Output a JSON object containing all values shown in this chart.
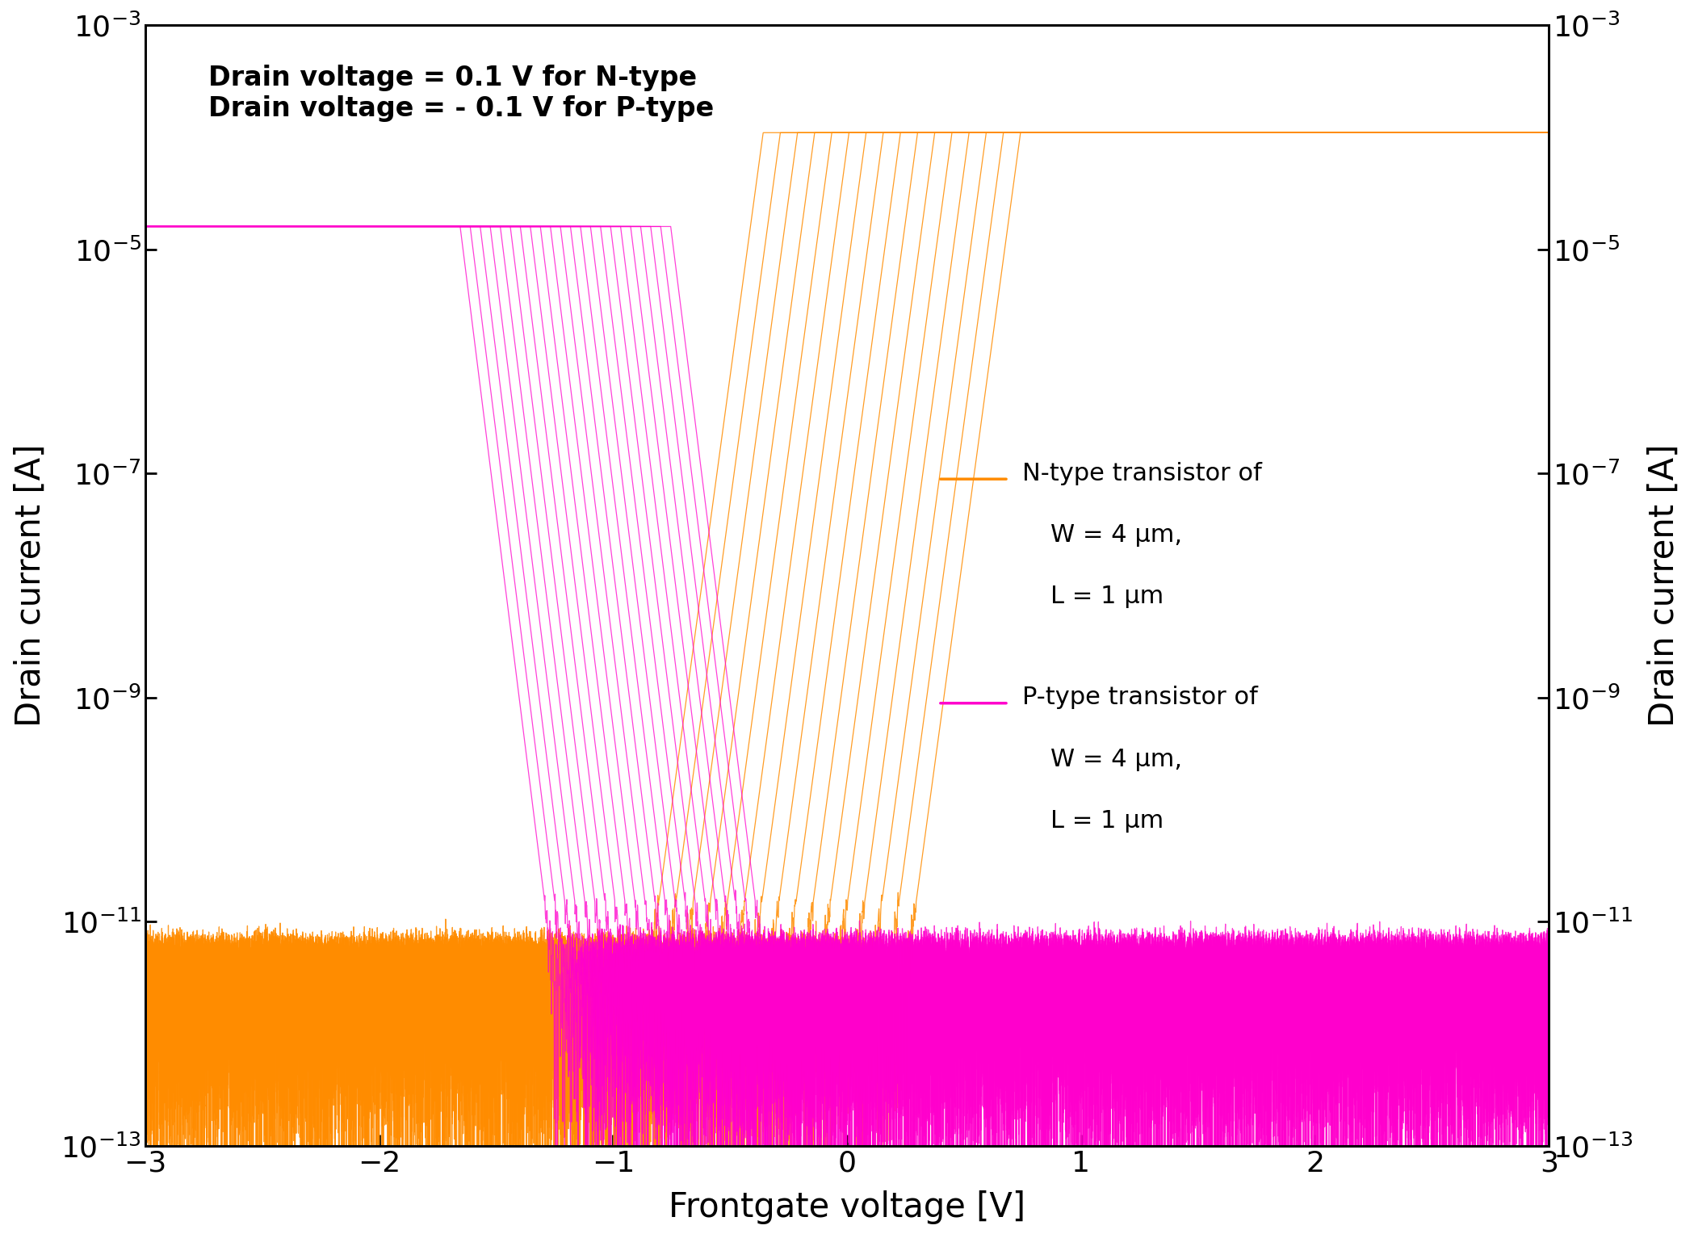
{
  "xlabel": "Frontgate voltage [V]",
  "ylabel_left": "Drain current [A]",
  "ylabel_right": "Drain current [A]",
  "annotation": "Drain voltage = 0.1 V for N-type\nDrain voltage = - 0.1 V for P-type",
  "xlim": [
    -3,
    3
  ],
  "ylim_log_min": -13,
  "ylim_log_max": -3,
  "n_color": "#FF8C00",
  "p_color": "#FF00CC",
  "n_label_line1": "N-type transistor of",
  "n_label_line2": "W = 4 μm,",
  "n_label_line3": "L = 1 μm",
  "p_label_line1": "P-type transistor of",
  "p_label_line2": "W = 4 μm,",
  "p_label_line3": "L = 1 μm",
  "n_curves": 16,
  "p_curves": 22,
  "n_ion": 0.00011,
  "n_ioff": 3e-12,
  "p_ion": 1.6e-05,
  "p_ioff": 3e-12,
  "n_ss": 0.065,
  "p_ss": 0.06,
  "n_vth_min": -0.85,
  "n_vth_max": 0.25,
  "p_vth_min": -1.25,
  "p_vth_max": -0.35,
  "noise_amplitude": 2.5e-12,
  "noise_freq": 80
}
